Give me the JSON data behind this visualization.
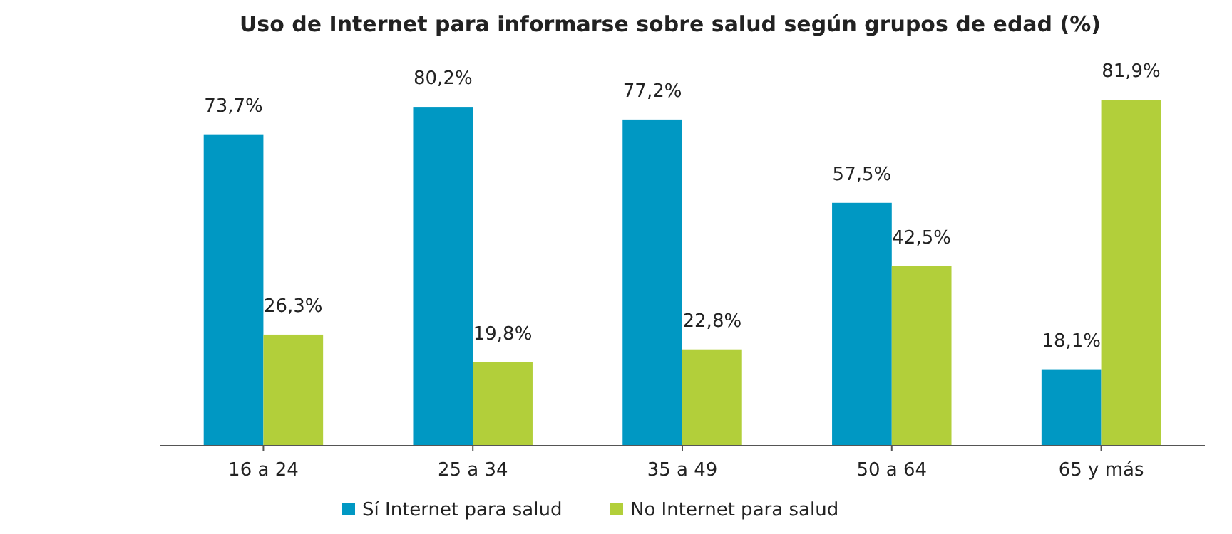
{
  "chart_data": {
    "type": "bar",
    "title": "Uso de Internet para informarse sobre salud según grupos de edad (%)",
    "categories": [
      "16 a 24",
      "25 a 34",
      "35 a 49",
      "50 a 64",
      "65 y más"
    ],
    "series": [
      {
        "name": "Sí Internet para salud",
        "color": "#0098c3",
        "values": [
          73.7,
          80.2,
          77.2,
          57.5,
          18.1
        ],
        "value_labels": [
          "73,7%",
          "80,2%",
          "77,2%",
          "57,5%",
          "18,1%"
        ]
      },
      {
        "name": "No Internet para salud",
        "color": "#b2cf3a",
        "values": [
          26.3,
          19.8,
          22.8,
          42.5,
          81.9
        ],
        "value_labels": [
          "26,3%",
          "19,8%",
          "22,8%",
          "42,5%",
          "81,9%"
        ]
      }
    ],
    "legend": "bottom"
  }
}
